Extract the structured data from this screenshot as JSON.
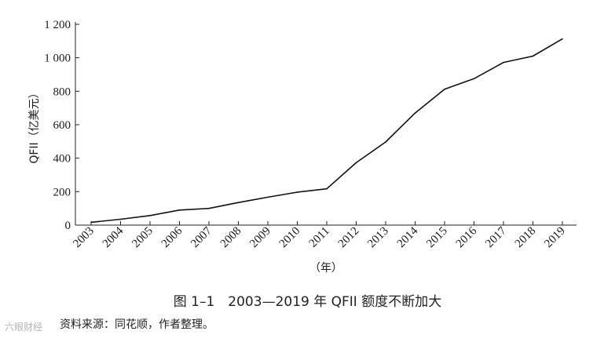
{
  "chart_data": {
    "type": "line",
    "ylabel": "QFII（亿美元）",
    "xlabel": "（年）",
    "x": [
      "2003",
      "2004",
      "2005",
      "2006",
      "2007",
      "2008",
      "2009",
      "2010",
      "2011",
      "2012",
      "2013",
      "2014",
      "2015",
      "2016",
      "2017",
      "2018",
      "2019"
    ],
    "series": [
      {
        "values": [
          17,
          35,
          57,
          90,
          100,
          135,
          167,
          197,
          217,
          373,
          497,
          670,
          812,
          875,
          972,
          1010,
          1113
        ]
      }
    ],
    "ylim": [
      0,
      1200
    ],
    "yticks": [
      0,
      200,
      400,
      600,
      800,
      1000,
      1200
    ],
    "ytick_labels": [
      "0",
      "200",
      "400",
      "600",
      "800",
      "1 000",
      "1 200"
    ],
    "grid": false,
    "line_color": "#111111"
  },
  "caption": "图 1–1　2003—2019 年 QFII 额度不断加大",
  "source": "资料来源：同花顺，作者整理。",
  "watermark": "六眼财经"
}
